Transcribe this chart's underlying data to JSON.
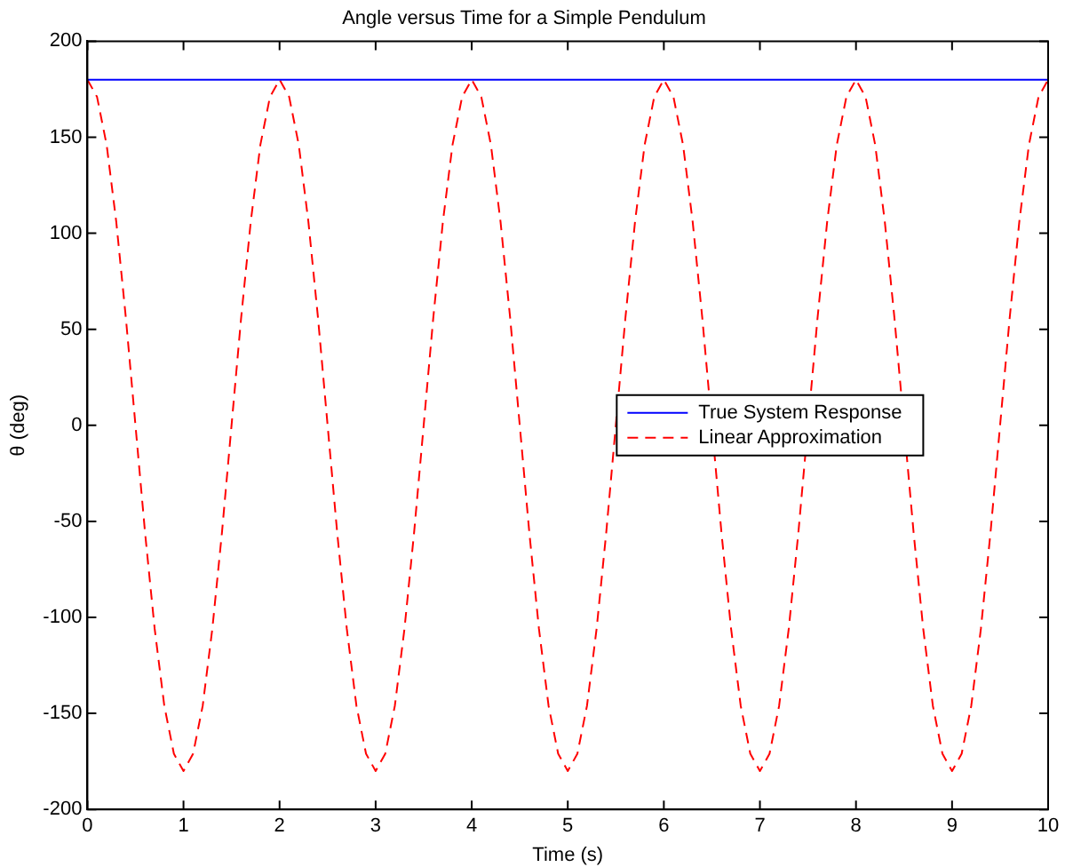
{
  "chart_data": {
    "type": "line",
    "title": "Angle versus Time for a Simple Pendulum",
    "xlabel": "Time (s)",
    "ylabel": "θ (deg)",
    "xlim": [
      0,
      10
    ],
    "xticks": [
      0,
      1,
      2,
      3,
      4,
      5,
      6,
      7,
      8,
      9,
      10
    ],
    "ylim": [
      -200,
      200
    ],
    "yticks": [
      -200,
      -150,
      -100,
      -50,
      0,
      50,
      100,
      150,
      200
    ],
    "grid": false,
    "legend": "right",
    "marker": "none",
    "x": [
      0,
      0.1,
      0.2,
      0.3,
      0.4,
      0.5,
      0.6,
      0.7,
      0.8,
      0.9,
      1,
      1.1,
      1.2,
      1.3,
      1.4,
      1.5,
      1.6,
      1.7,
      1.8,
      1.9,
      2,
      2.1,
      2.2,
      2.3,
      2.4,
      2.5,
      2.6,
      2.7,
      2.8,
      2.9,
      3,
      3.1,
      3.2,
      3.3,
      3.4,
      3.5,
      3.6,
      3.7,
      3.8,
      3.9,
      4,
      4.1,
      4.2,
      4.3,
      4.4,
      4.5,
      4.6,
      4.7,
      4.8,
      4.9,
      5,
      5.1,
      5.2,
      5.3,
      5.4,
      5.5,
      5.6,
      5.7,
      5.8,
      5.9,
      6,
      6.1,
      6.2,
      6.3,
      6.4,
      6.5,
      6.6,
      6.7,
      6.8,
      6.9,
      7,
      7.1,
      7.2,
      7.3,
      7.4,
      7.5,
      7.6,
      7.7,
      7.8,
      7.9,
      8,
      8.1,
      8.2,
      8.3,
      8.4,
      8.5,
      8.6,
      8.7,
      8.8,
      8.9,
      9,
      9.1,
      9.2,
      9.3,
      9.4,
      9.5,
      9.6,
      9.7,
      9.8,
      9.9,
      10
    ],
    "series": [
      {
        "name": "True System Response",
        "color": "#0000ff",
        "line_style": "solid",
        "x": [
          0,
          10
        ],
        "values": [
          180,
          180
        ]
      },
      {
        "name": "Linear Approximation",
        "color": "#ff0000",
        "line_style": "dashed",
        "values": [
          180,
          171,
          146,
          106,
          56,
          0,
          -56,
          -106,
          -146,
          -171,
          -180,
          -171,
          -146,
          -106,
          -56,
          0,
          56,
          106,
          146,
          171,
          180,
          171,
          146,
          106,
          56,
          0,
          -56,
          -106,
          -146,
          -171,
          -180,
          -171,
          -146,
          -106,
          -56,
          0,
          56,
          106,
          146,
          171,
          180,
          171,
          146,
          106,
          56,
          0,
          -56,
          -106,
          -146,
          -171,
          -180,
          -171,
          -146,
          -106,
          -56,
          0,
          56,
          106,
          146,
          171,
          180,
          171,
          146,
          106,
          56,
          null,
          -56,
          -106,
          -146,
          -171,
          -180,
          -171,
          -146,
          -106,
          -56,
          null,
          56,
          106,
          146,
          171,
          180,
          171,
          146,
          106,
          56,
          null,
          -56,
          -106,
          -146,
          -171,
          -180,
          -171,
          -146,
          -106,
          -56,
          0,
          56,
          106,
          146,
          171,
          180
        ]
      }
    ]
  }
}
